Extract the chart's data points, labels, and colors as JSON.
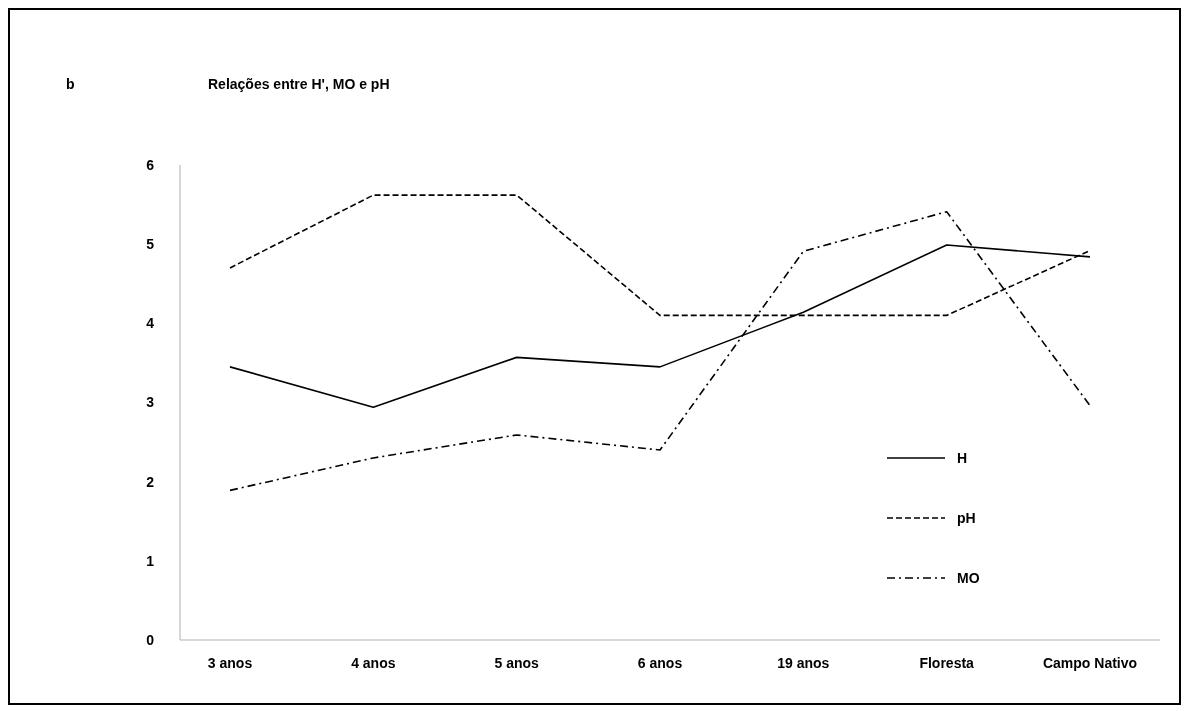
{
  "chart_data": {
    "type": "line",
    "title": "Relações entre H', MO e pH",
    "annotations": [
      "b"
    ],
    "categories": [
      "3 anos",
      "4 anos",
      "5 anos",
      "6 anos",
      "19 anos",
      "Floresta",
      "Campo Nativo"
    ],
    "series": [
      {
        "name": "H",
        "color": "#000000",
        "line_style": "solid",
        "values": [
          3.45,
          2.94,
          3.57,
          3.45,
          4.14,
          4.99,
          4.84
        ]
      },
      {
        "name": "pH",
        "color": "#000000",
        "line_style": "dashed",
        "values": [
          4.7,
          5.62,
          5.62,
          4.1,
          4.1,
          4.1,
          4.92
        ]
      },
      {
        "name": "MO",
        "color": "#000000",
        "line_style": "dashdot",
        "values": [
          1.89,
          2.3,
          2.59,
          2.4,
          4.91,
          5.41,
          2.96
        ]
      }
    ],
    "ylim": [
      0,
      6
    ],
    "yticks": [
      0,
      1,
      2,
      3,
      4,
      5,
      6
    ],
    "legend": "right",
    "marker": "none"
  }
}
